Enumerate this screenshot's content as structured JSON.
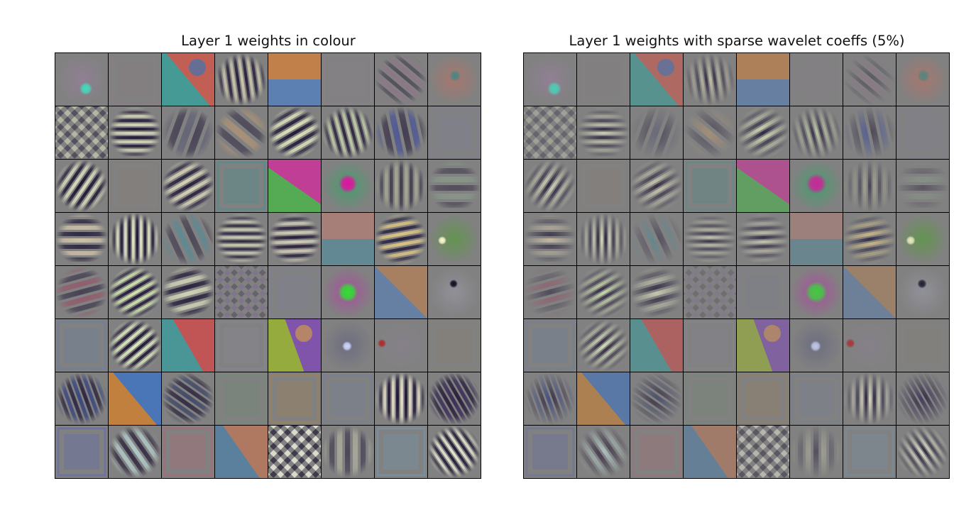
{
  "figure": {
    "left_title": "Layer 1 weights in colour",
    "right_title": "Layer 1 weights with sparse wavelet coeffs (5%)"
  },
  "colors": {
    "background": "#ffffff",
    "cell_base": "#818181",
    "grid_line": "#000000"
  }
}
